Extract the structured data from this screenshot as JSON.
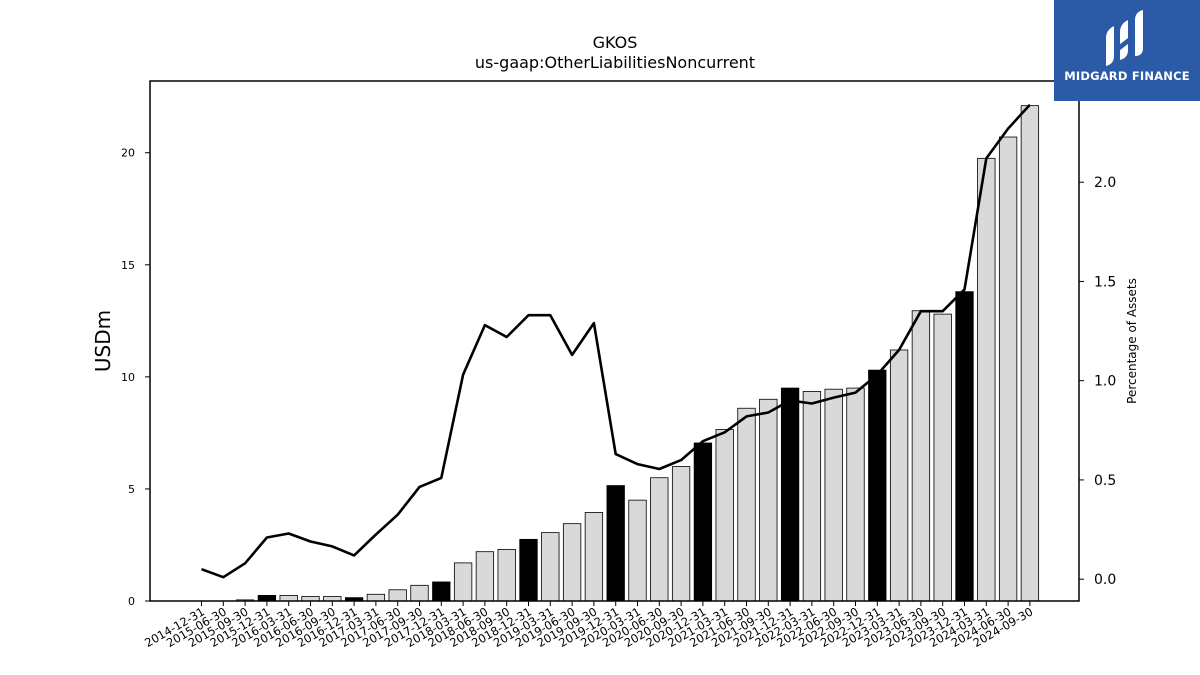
{
  "chart_data": {
    "type": "bar",
    "title": "GKOS",
    "subtitle": "us-gaap:OtherLiabilitiesNoncurrent",
    "ylabel": "USDm",
    "y2label": "Percentage of Assets",
    "ylim": [
      0,
      23.2
    ],
    "y2lim": [
      -0.11,
      2.51
    ],
    "yticks": [
      0,
      5,
      10,
      15,
      20
    ],
    "y2ticks": [
      0.0,
      0.5,
      1.0,
      1.5,
      2.0
    ],
    "y2tick_labels": [
      "0.0",
      "0.5",
      "1.0",
      "1.5",
      "2.0"
    ],
    "grid": false,
    "categories": [
      "2014-12-31",
      "2015-06-30",
      "2015-09-30",
      "2015-12-31",
      "2016-03-31",
      "2016-06-30",
      "2016-09-30",
      "2016-12-31",
      "2017-03-31",
      "2017-06-30",
      "2017-09-30",
      "2017-12-31",
      "2018-03-31",
      "2018-06-30",
      "2018-09-30",
      "2018-12-31",
      "2019-03-31",
      "2019-06-30",
      "2019-09-30",
      "2019-12-31",
      "2020-03-31",
      "2020-06-30",
      "2020-09-30",
      "2020-12-31",
      "2021-03-31",
      "2021-06-30",
      "2021-09-30",
      "2021-12-31",
      "2022-03-31",
      "2022-06-30",
      "2022-09-30",
      "2022-12-31",
      "2023-03-31",
      "2023-06-30",
      "2023-09-30",
      "2023-12-31",
      "2024-03-31",
      "2024-06-30",
      "2024-09-30"
    ],
    "series": [
      {
        "kind": "bar",
        "axis": "left",
        "values": [
          0.0,
          0.0,
          0.05,
          0.25,
          0.25,
          0.2,
          0.2,
          0.15,
          0.3,
          0.5,
          0.7,
          0.85,
          1.7,
          2.2,
          2.3,
          2.75,
          3.05,
          3.45,
          3.95,
          5.15,
          4.5,
          5.5,
          6.0,
          7.05,
          7.65,
          8.6,
          9.0,
          9.5,
          9.35,
          9.45,
          9.5,
          10.3,
          11.2,
          12.95,
          12.8,
          13.8,
          19.75,
          20.7,
          22.1
        ],
        "highlight": [
          false,
          false,
          false,
          true,
          false,
          false,
          false,
          true,
          false,
          false,
          false,
          true,
          false,
          false,
          false,
          true,
          false,
          false,
          false,
          true,
          false,
          false,
          false,
          true,
          false,
          false,
          false,
          true,
          false,
          false,
          false,
          true,
          false,
          false,
          false,
          true,
          false,
          false,
          false
        ]
      },
      {
        "kind": "line",
        "axis": "right",
        "values": [
          0.05,
          0.01,
          0.08,
          0.21,
          0.23,
          0.19,
          0.165,
          0.12,
          0.225,
          0.325,
          0.465,
          0.51,
          1.03,
          1.28,
          1.22,
          1.33,
          1.33,
          1.13,
          1.29,
          0.63,
          0.58,
          0.555,
          0.6,
          0.695,
          0.74,
          0.82,
          0.84,
          0.9,
          0.885,
          0.915,
          0.94,
          1.03,
          1.155,
          1.35,
          1.35,
          1.46,
          2.12,
          2.27,
          2.39
        ]
      }
    ],
    "colors": {
      "bar": "#d9d9d9",
      "bar_highlight": "#000000",
      "bar_edge": "#000000",
      "line": "#000000"
    }
  },
  "logo": {
    "brand": "MIDGARD FINANCE",
    "background": "#2b5aa6"
  }
}
